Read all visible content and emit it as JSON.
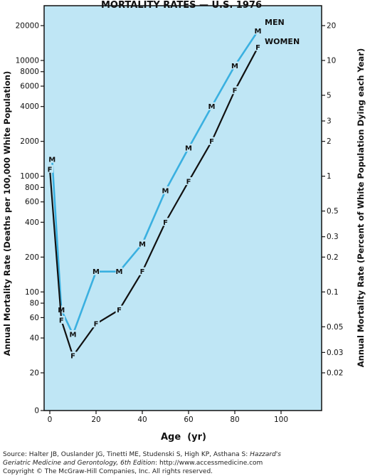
{
  "chart_data": {
    "type": "line",
    "title": "MORTALITY RATES — U.S. 1976",
    "xlabel": "Age  (yr)",
    "ylabel_left": "Annual Mortality Rate (Deaths per 100,000 White Population)",
    "ylabel_right": "Annual Mortality Rate (Percent of White Population Dying each Year)",
    "y_scale": "log",
    "xlim": [
      0,
      120
    ],
    "x_ticks": [
      0,
      20,
      40,
      60,
      80,
      100
    ],
    "left_ticks": [
      {
        "value": 20000,
        "label": "20000"
      },
      {
        "value": 10000,
        "label": "10000"
      },
      {
        "value": 8000,
        "label": "8000"
      },
      {
        "value": 6000,
        "label": "6000"
      },
      {
        "value": 4000,
        "label": "4000"
      },
      {
        "value": 2000,
        "label": "2000"
      },
      {
        "value": 1000,
        "label": "1000"
      },
      {
        "value": 800,
        "label": "800"
      },
      {
        "value": 600,
        "label": "600"
      },
      {
        "value": 400,
        "label": "400"
      },
      {
        "value": 200,
        "label": "200"
      },
      {
        "value": 100,
        "label": "100"
      },
      {
        "value": 80,
        "label": "80"
      },
      {
        "value": 60,
        "label": "60"
      },
      {
        "value": 40,
        "label": "40"
      },
      {
        "value": 20,
        "label": "20"
      },
      {
        "value": 0,
        "label": "0"
      }
    ],
    "right_ticks": [
      {
        "value": 20000,
        "label": "20"
      },
      {
        "value": 10000,
        "label": "10"
      },
      {
        "value": 5000,
        "label": "5"
      },
      {
        "value": 3000,
        "label": "3"
      },
      {
        "value": 2000,
        "label": "2"
      },
      {
        "value": 1000,
        "label": "1"
      },
      {
        "value": 500,
        "label": "0.5"
      },
      {
        "value": 300,
        "label": "0.3"
      },
      {
        "value": 200,
        "label": "0.2"
      },
      {
        "value": 100,
        "label": "0.1"
      },
      {
        "value": 50,
        "label": "0.05"
      },
      {
        "value": 30,
        "label": "0.03"
      },
      {
        "value": 20,
        "label": "0.02"
      }
    ],
    "series": [
      {
        "name": "MEN",
        "marker": "M",
        "color": "#3ab0e0",
        "x": [
          1,
          5,
          10,
          20,
          30,
          40,
          50,
          60,
          70,
          80,
          90
        ],
        "y": [
          1400,
          70,
          43,
          150,
          150,
          260,
          750,
          1750,
          4000,
          9000,
          18000
        ]
      },
      {
        "name": "WOMEN",
        "marker": "F",
        "color": "#111111",
        "x": [
          0,
          5,
          10,
          20,
          30,
          40,
          50,
          60,
          70,
          80,
          90
        ],
        "y": [
          1150,
          57,
          28,
          53,
          70,
          150,
          400,
          900,
          2000,
          5500,
          13000
        ]
      }
    ],
    "background_color": "#bfe6f5"
  },
  "source": {
    "line1_prefix": "Source: Halter JB, Ouslander JG, Tinetti ME, Studenski S, High KP, Asthana S: ",
    "line1_italic": "Hazzard's",
    "line2_italic": "Geriatric Medicine and Gerontology, 6th Edition",
    "line2_suffix": ": http://www.accessmedicine.com",
    "copyright": "Copyright © The McGraw-Hill Companies, Inc. All rights reserved."
  }
}
